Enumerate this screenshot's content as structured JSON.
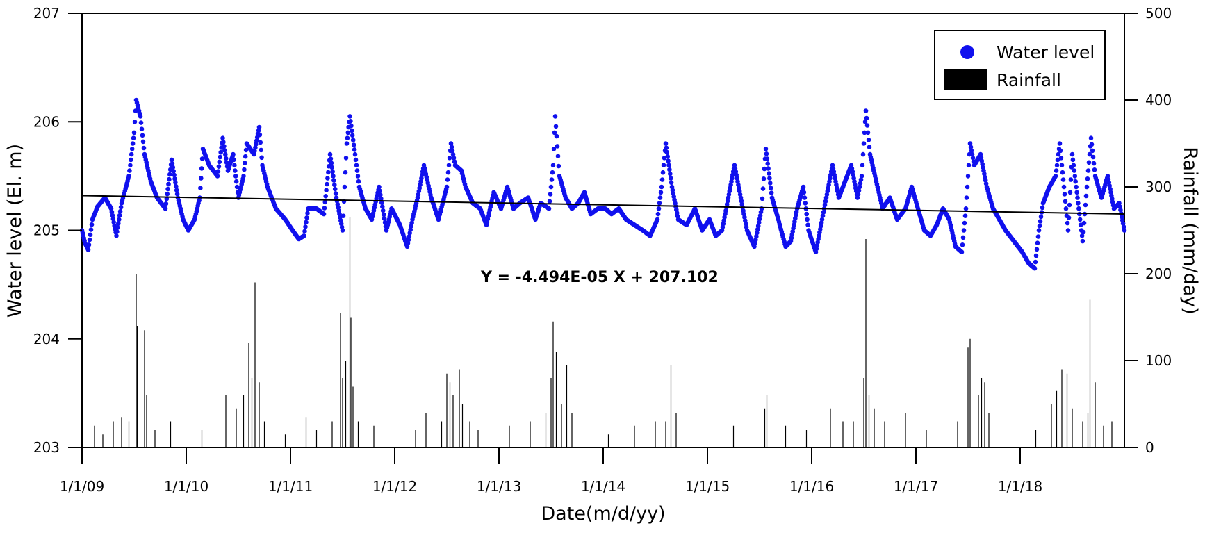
{
  "chart_data": {
    "type": "scatter+bar",
    "xlabel": "Date(m/d/yy)",
    "ylabel_left": "Water level (El. m)",
    "ylabel_right": "Rainfall (mm/day)",
    "x_range_years": [
      2009.0,
      2019.0
    ],
    "ylim_left": [
      203,
      207
    ],
    "ylim_right": [
      0,
      500
    ],
    "x_ticks": [
      {
        "t": 2009,
        "label": "1/1/09"
      },
      {
        "t": 2010,
        "label": "1/1/10"
      },
      {
        "t": 2011,
        "label": "1/1/11"
      },
      {
        "t": 2012,
        "label": "1/1/12"
      },
      {
        "t": 2013,
        "label": "1/1/13"
      },
      {
        "t": 2014,
        "label": "1/1/14"
      },
      {
        "t": 2015,
        "label": "1/1/15"
      },
      {
        "t": 2016,
        "label": "1/1/16"
      },
      {
        "t": 2017,
        "label": "1/1/17"
      },
      {
        "t": 2018,
        "label": "1/1/18"
      }
    ],
    "y_ticks_left": [
      203,
      204,
      205,
      206,
      207
    ],
    "y_ticks_right": [
      0,
      100,
      200,
      300,
      400,
      500
    ],
    "legend": {
      "position": "top-right",
      "items": [
        "Water level",
        "Rainfall"
      ]
    },
    "water_level_color": "#1010ee",
    "rainfall_color": "#000000",
    "water_level": [
      [
        2009.0,
        205.0
      ],
      [
        2009.03,
        204.88
      ],
      [
        2009.06,
        204.82
      ],
      [
        2009.1,
        205.1
      ],
      [
        2009.15,
        205.22
      ],
      [
        2009.22,
        205.3
      ],
      [
        2009.28,
        205.2
      ],
      [
        2009.33,
        204.95
      ],
      [
        2009.38,
        205.25
      ],
      [
        2009.45,
        205.5
      ],
      [
        2009.5,
        205.9
      ],
      [
        2009.52,
        206.2
      ],
      [
        2009.56,
        206.05
      ],
      [
        2009.6,
        205.7
      ],
      [
        2009.66,
        205.45
      ],
      [
        2009.72,
        205.3
      ],
      [
        2009.8,
        205.2
      ],
      [
        2009.86,
        205.65
      ],
      [
        2009.92,
        205.3
      ],
      [
        2009.97,
        205.1
      ],
      [
        2010.02,
        205.0
      ],
      [
        2010.08,
        205.1
      ],
      [
        2010.13,
        205.3
      ],
      [
        2010.16,
        205.75
      ],
      [
        2010.22,
        205.6
      ],
      [
        2010.3,
        205.5
      ],
      [
        2010.35,
        205.85
      ],
      [
        2010.4,
        205.55
      ],
      [
        2010.45,
        205.7
      ],
      [
        2010.5,
        205.3
      ],
      [
        2010.55,
        205.5
      ],
      [
        2010.58,
        205.8
      ],
      [
        2010.65,
        205.7
      ],
      [
        2010.7,
        205.95
      ],
      [
        2010.73,
        205.6
      ],
      [
        2010.78,
        205.4
      ],
      [
        2010.86,
        205.2
      ],
      [
        2010.95,
        205.1
      ],
      [
        2011.02,
        205.0
      ],
      [
        2011.08,
        204.92
      ],
      [
        2011.13,
        204.95
      ],
      [
        2011.17,
        205.2
      ],
      [
        2011.25,
        205.2
      ],
      [
        2011.32,
        205.15
      ],
      [
        2011.38,
        205.7
      ],
      [
        2011.44,
        205.3
      ],
      [
        2011.5,
        205.0
      ],
      [
        2011.54,
        205.8
      ],
      [
        2011.57,
        206.05
      ],
      [
        2011.62,
        205.7
      ],
      [
        2011.66,
        205.4
      ],
      [
        2011.72,
        205.2
      ],
      [
        2011.78,
        205.1
      ],
      [
        2011.85,
        205.4
      ],
      [
        2011.92,
        205.0
      ],
      [
        2011.97,
        205.2
      ],
      [
        2012.05,
        205.05
      ],
      [
        2012.12,
        204.85
      ],
      [
        2012.17,
        205.1
      ],
      [
        2012.22,
        205.3
      ],
      [
        2012.28,
        205.6
      ],
      [
        2012.35,
        205.3
      ],
      [
        2012.42,
        205.1
      ],
      [
        2012.5,
        205.4
      ],
      [
        2012.54,
        205.8
      ],
      [
        2012.58,
        205.6
      ],
      [
        2012.64,
        205.55
      ],
      [
        2012.68,
        205.4
      ],
      [
        2012.75,
        205.25
      ],
      [
        2012.82,
        205.2
      ],
      [
        2012.88,
        205.05
      ],
      [
        2012.95,
        205.35
      ],
      [
        2013.02,
        205.2
      ],
      [
        2013.08,
        205.4
      ],
      [
        2013.14,
        205.2
      ],
      [
        2013.2,
        205.25
      ],
      [
        2013.28,
        205.3
      ],
      [
        2013.35,
        205.1
      ],
      [
        2013.4,
        205.25
      ],
      [
        2013.48,
        205.2
      ],
      [
        2013.52,
        205.6
      ],
      [
        2013.54,
        206.05
      ],
      [
        2013.58,
        205.5
      ],
      [
        2013.64,
        205.3
      ],
      [
        2013.7,
        205.2
      ],
      [
        2013.76,
        205.25
      ],
      [
        2013.82,
        205.35
      ],
      [
        2013.88,
        205.15
      ],
      [
        2013.95,
        205.2
      ],
      [
        2014.02,
        205.2
      ],
      [
        2014.08,
        205.15
      ],
      [
        2014.15,
        205.2
      ],
      [
        2014.22,
        205.1
      ],
      [
        2014.3,
        205.05
      ],
      [
        2014.38,
        205.0
      ],
      [
        2014.45,
        204.95
      ],
      [
        2014.52,
        205.1
      ],
      [
        2014.56,
        205.4
      ],
      [
        2014.6,
        205.8
      ],
      [
        2014.66,
        205.4
      ],
      [
        2014.72,
        205.1
      ],
      [
        2014.8,
        205.05
      ],
      [
        2014.88,
        205.2
      ],
      [
        2014.95,
        205.0
      ],
      [
        2015.02,
        205.1
      ],
      [
        2015.08,
        204.95
      ],
      [
        2015.14,
        205.0
      ],
      [
        2015.2,
        205.3
      ],
      [
        2015.26,
        205.6
      ],
      [
        2015.32,
        205.3
      ],
      [
        2015.38,
        205.0
      ],
      [
        2015.45,
        204.85
      ],
      [
        2015.52,
        205.2
      ],
      [
        2015.56,
        205.75
      ],
      [
        2015.62,
        205.3
      ],
      [
        2015.68,
        205.1
      ],
      [
        2015.75,
        204.85
      ],
      [
        2015.8,
        204.9
      ],
      [
        2015.86,
        205.2
      ],
      [
        2015.92,
        205.4
      ],
      [
        2015.97,
        205.0
      ],
      [
        2016.04,
        204.8
      ],
      [
        2016.1,
        205.1
      ],
      [
        2016.14,
        205.3
      ],
      [
        2016.2,
        205.6
      ],
      [
        2016.26,
        205.3
      ],
      [
        2016.32,
        205.45
      ],
      [
        2016.38,
        205.6
      ],
      [
        2016.44,
        205.3
      ],
      [
        2016.48,
        205.5
      ],
      [
        2016.52,
        206.1
      ],
      [
        2016.56,
        205.7
      ],
      [
        2016.62,
        205.45
      ],
      [
        2016.68,
        205.2
      ],
      [
        2016.75,
        205.3
      ],
      [
        2016.82,
        205.1
      ],
      [
        2016.9,
        205.2
      ],
      [
        2016.96,
        205.4
      ],
      [
        2017.02,
        205.2
      ],
      [
        2017.08,
        205.0
      ],
      [
        2017.14,
        204.95
      ],
      [
        2017.2,
        205.05
      ],
      [
        2017.26,
        205.2
      ],
      [
        2017.32,
        205.1
      ],
      [
        2017.38,
        204.85
      ],
      [
        2017.44,
        204.8
      ],
      [
        2017.48,
        205.2
      ],
      [
        2017.52,
        205.8
      ],
      [
        2017.56,
        205.6
      ],
      [
        2017.62,
        205.7
      ],
      [
        2017.68,
        205.4
      ],
      [
        2017.74,
        205.2
      ],
      [
        2017.8,
        205.1
      ],
      [
        2017.86,
        205.0
      ],
      [
        2017.94,
        204.9
      ],
      [
        2018.02,
        204.8
      ],
      [
        2018.08,
        204.7
      ],
      [
        2018.14,
        204.65
      ],
      [
        2018.18,
        205.0
      ],
      [
        2018.22,
        205.25
      ],
      [
        2018.28,
        205.4
      ],
      [
        2018.34,
        205.5
      ],
      [
        2018.38,
        205.8
      ],
      [
        2018.42,
        205.4
      ],
      [
        2018.46,
        205.0
      ],
      [
        2018.5,
        205.7
      ],
      [
        2018.55,
        205.3
      ],
      [
        2018.6,
        204.9
      ],
      [
        2018.64,
        205.4
      ],
      [
        2018.68,
        205.85
      ],
      [
        2018.72,
        205.5
      ],
      [
        2018.78,
        205.3
      ],
      [
        2018.84,
        205.5
      ],
      [
        2018.9,
        205.2
      ],
      [
        2018.95,
        205.25
      ],
      [
        2019.0,
        205.0
      ]
    ],
    "rainfall": [
      [
        2009.12,
        25
      ],
      [
        2009.2,
        15
      ],
      [
        2009.3,
        30
      ],
      [
        2009.38,
        35
      ],
      [
        2009.45,
        30
      ],
      [
        2009.52,
        200
      ],
      [
        2009.53,
        140
      ],
      [
        2009.6,
        135
      ],
      [
        2009.62,
        60
      ],
      [
        2009.7,
        20
      ],
      [
        2009.85,
        30
      ],
      [
        2010.15,
        20
      ],
      [
        2010.38,
        60
      ],
      [
        2010.48,
        45
      ],
      [
        2010.55,
        60
      ],
      [
        2010.6,
        120
      ],
      [
        2010.63,
        80
      ],
      [
        2010.66,
        190
      ],
      [
        2010.7,
        75
      ],
      [
        2010.75,
        30
      ],
      [
        2010.95,
        15
      ],
      [
        2011.15,
        35
      ],
      [
        2011.25,
        20
      ],
      [
        2011.4,
        30
      ],
      [
        2011.48,
        155
      ],
      [
        2011.5,
        80
      ],
      [
        2011.53,
        100
      ],
      [
        2011.57,
        265
      ],
      [
        2011.58,
        150
      ],
      [
        2011.6,
        70
      ],
      [
        2011.65,
        30
      ],
      [
        2011.8,
        25
      ],
      [
        2012.2,
        20
      ],
      [
        2012.3,
        40
      ],
      [
        2012.45,
        30
      ],
      [
        2012.5,
        85
      ],
      [
        2012.53,
        75
      ],
      [
        2012.56,
        60
      ],
      [
        2012.62,
        90
      ],
      [
        2012.65,
        50
      ],
      [
        2012.72,
        30
      ],
      [
        2012.8,
        20
      ],
      [
        2013.1,
        25
      ],
      [
        2013.3,
        30
      ],
      [
        2013.45,
        40
      ],
      [
        2013.5,
        80
      ],
      [
        2013.52,
        145
      ],
      [
        2013.55,
        110
      ],
      [
        2013.6,
        50
      ],
      [
        2013.65,
        95
      ],
      [
        2013.7,
        40
      ],
      [
        2014.05,
        15
      ],
      [
        2014.3,
        25
      ],
      [
        2014.5,
        30
      ],
      [
        2014.6,
        30
      ],
      [
        2014.65,
        95
      ],
      [
        2014.7,
        40
      ],
      [
        2015.25,
        25
      ],
      [
        2015.55,
        45
      ],
      [
        2015.57,
        60
      ],
      [
        2015.75,
        25
      ],
      [
        2015.95,
        20
      ],
      [
        2016.18,
        45
      ],
      [
        2016.3,
        30
      ],
      [
        2016.4,
        30
      ],
      [
        2016.5,
        80
      ],
      [
        2016.52,
        240
      ],
      [
        2016.55,
        60
      ],
      [
        2016.6,
        45
      ],
      [
        2016.7,
        30
      ],
      [
        2016.9,
        40
      ],
      [
        2017.1,
        20
      ],
      [
        2017.4,
        30
      ],
      [
        2017.5,
        115
      ],
      [
        2017.52,
        125
      ],
      [
        2017.6,
        60
      ],
      [
        2017.63,
        80
      ],
      [
        2017.66,
        75
      ],
      [
        2017.7,
        40
      ],
      [
        2018.15,
        20
      ],
      [
        2018.3,
        50
      ],
      [
        2018.35,
        65
      ],
      [
        2018.4,
        90
      ],
      [
        2018.45,
        85
      ],
      [
        2018.5,
        45
      ],
      [
        2018.6,
        30
      ],
      [
        2018.65,
        40
      ],
      [
        2018.67,
        170
      ],
      [
        2018.72,
        75
      ],
      [
        2018.8,
        25
      ],
      [
        2018.88,
        30
      ]
    ],
    "trendline": {
      "x": [
        2009.0,
        2019.0
      ],
      "y": [
        205.32,
        205.15
      ]
    },
    "equation_label": "Y = -4.494E-05 X + 207.102"
  }
}
